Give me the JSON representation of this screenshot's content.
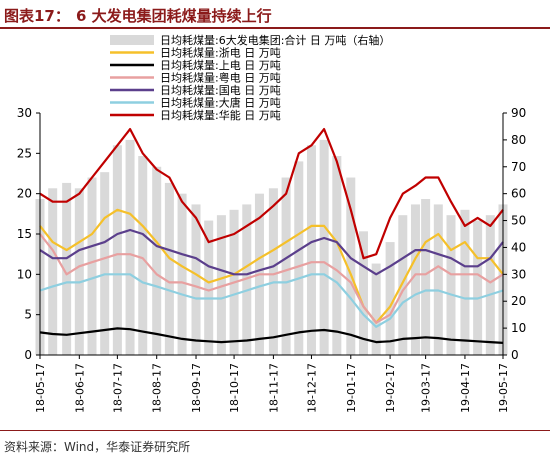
{
  "header": {
    "figure_label": "图表17：",
    "figure_title": "6 大发电集团耗煤量持续上行"
  },
  "source": "资料来源：Wind，华泰证券研究所",
  "colors": {
    "title": "#8B1A1A",
    "total_bars": "#D9D9D9",
    "zhedian": "#F5C02A",
    "shangdian": "#000000",
    "yuedian": "#E8A0A0",
    "guodian": "#5B3F8C",
    "datang": "#8ECFE0",
    "huaneng": "#C00000"
  },
  "chart_data": {
    "type": "line",
    "x_ticks": [
      "18-05-17",
      "18-06-17",
      "18-07-17",
      "18-08-17",
      "18-09-17",
      "18-10-17",
      "18-11-17",
      "18-12-17",
      "19-01-17",
      "19-02-17",
      "19-03-17",
      "19-04-17",
      "19-05-17"
    ],
    "x": [
      "18-05-17",
      "18-05-27",
      "18-06-07",
      "18-06-17",
      "18-06-27",
      "18-07-07",
      "18-07-17",
      "18-07-27",
      "18-08-06",
      "18-08-17",
      "18-08-27",
      "18-09-06",
      "18-09-17",
      "18-09-27",
      "18-10-07",
      "18-10-17",
      "18-10-27",
      "18-11-06",
      "18-11-17",
      "18-11-27",
      "18-12-07",
      "18-12-17",
      "18-12-27",
      "19-01-06",
      "19-01-17",
      "19-01-27",
      "19-02-06",
      "19-02-17",
      "19-02-27",
      "19-03-09",
      "19-03-17",
      "19-03-27",
      "19-04-06",
      "19-04-17",
      "19-04-27",
      "19-05-07",
      "19-05-17"
    ],
    "left_axis": {
      "ylim": [
        0,
        30
      ],
      "ticks": [
        0,
        5,
        10,
        15,
        20,
        25,
        30
      ]
    },
    "right_axis": {
      "ylim": [
        0,
        90
      ],
      "ticks": [
        0,
        10,
        20,
        30,
        40,
        50,
        60,
        70,
        80,
        90
      ]
    },
    "legend_position": "top",
    "grid": false,
    "series": [
      {
        "name": "日均耗煤量:6大发电集团:合计 日 万吨（右轴）",
        "type": "bar",
        "axis": "right",
        "color": "#D9D9D9",
        "values": [
          58,
          62,
          64,
          62,
          66,
          68,
          78,
          80,
          74,
          70,
          64,
          60,
          56,
          50,
          52,
          54,
          56,
          60,
          62,
          66,
          72,
          78,
          80,
          74,
          66,
          46,
          34,
          42,
          52,
          56,
          58,
          56,
          52,
          54,
          50,
          52,
          56
        ]
      },
      {
        "name": "日均耗煤量:浙电 日 万吨",
        "type": "line",
        "axis": "left",
        "color": "#F5C02A",
        "values": [
          16,
          14,
          13,
          14,
          15,
          17,
          18,
          17.5,
          16,
          14,
          12,
          11,
          10,
          9,
          9.5,
          10,
          11,
          12,
          13,
          14,
          15,
          16,
          16,
          14,
          10,
          6,
          4,
          6,
          9,
          12,
          14,
          15,
          13,
          14,
          12,
          12,
          10
        ]
      },
      {
        "name": "日均耗煤量:上电 日 万吨",
        "type": "line",
        "axis": "left",
        "color": "#000000",
        "values": [
          2.8,
          2.6,
          2.5,
          2.7,
          2.9,
          3.1,
          3.3,
          3.2,
          2.9,
          2.6,
          2.3,
          2.0,
          1.8,
          1.7,
          1.6,
          1.7,
          1.8,
          2.0,
          2.2,
          2.5,
          2.8,
          3.0,
          3.1,
          2.9,
          2.5,
          2.0,
          1.6,
          1.7,
          2.0,
          2.1,
          2.2,
          2.1,
          1.9,
          1.8,
          1.7,
          1.6,
          1.5
        ]
      },
      {
        "name": "日均耗煤量:粤电 日 万吨",
        "type": "line",
        "axis": "left",
        "color": "#E8A0A0",
        "values": [
          15,
          13,
          10,
          11,
          11.5,
          12,
          12.5,
          12.5,
          12,
          10,
          9,
          9,
          8.5,
          8,
          8.5,
          9,
          9.5,
          10,
          10,
          10.5,
          11,
          11.5,
          11.5,
          10.5,
          9,
          6,
          4,
          5,
          8,
          10,
          10,
          11,
          10,
          10,
          10,
          9,
          10
        ]
      },
      {
        "name": "日均耗煤量:国电 日 万吨",
        "type": "line",
        "axis": "left",
        "color": "#5B3F8C",
        "values": [
          13,
          12,
          12,
          13,
          13.5,
          14,
          15,
          15.5,
          15,
          13.5,
          13,
          12.5,
          12,
          11,
          10.5,
          10,
          10,
          10.5,
          11,
          12,
          13,
          14,
          14.5,
          14,
          12,
          11,
          10,
          11,
          12,
          13,
          13,
          12.5,
          12,
          11,
          11,
          12,
          14
        ]
      },
      {
        "name": "日均耗煤量:大唐 日 万吨",
        "type": "line",
        "axis": "left",
        "color": "#8ECFE0",
        "values": [
          8,
          8.5,
          9,
          9,
          9.5,
          10,
          10,
          10,
          9,
          8.5,
          8,
          7.5,
          7,
          7,
          7,
          7.5,
          8,
          8.5,
          9,
          9,
          9.5,
          10,
          10,
          9,
          7,
          5,
          3.5,
          4.5,
          6.5,
          7.5,
          8,
          8,
          7.5,
          7,
          7,
          7.5,
          8
        ]
      },
      {
        "name": "日均耗煤量:华能 日 万吨",
        "type": "line",
        "axis": "left",
        "color": "#C00000",
        "values": [
          20,
          19,
          19,
          20,
          22,
          24,
          26,
          28,
          25,
          23,
          22,
          19,
          17,
          14,
          14.5,
          15,
          16,
          17,
          18.5,
          20,
          25,
          26,
          28,
          24,
          18,
          12,
          12.5,
          17,
          20,
          21,
          22,
          22,
          19,
          16,
          17,
          16,
          18
        ]
      }
    ]
  }
}
